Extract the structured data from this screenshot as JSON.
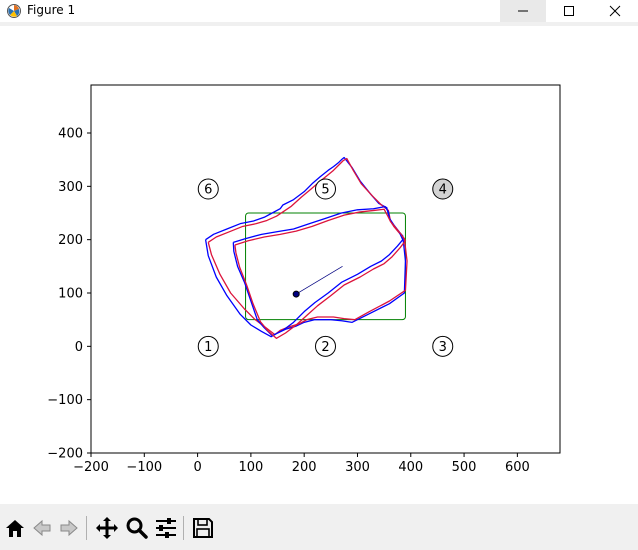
{
  "window": {
    "title": "Figure 1",
    "app_icon": "matplotlib-icon",
    "controls": [
      "minimize",
      "maximize",
      "close"
    ]
  },
  "toolbar": {
    "tools": [
      "home-icon",
      "back-arrow-icon",
      "forward-arrow-icon",
      "pan-icon",
      "zoom-icon",
      "configure-subplots-icon",
      "save-icon"
    ]
  },
  "chart_data": {
    "type": "line",
    "xlim": [
      -200,
      680
    ],
    "ylim": [
      -200,
      490
    ],
    "x_ticks": [
      -200,
      -100,
      0,
      100,
      200,
      300,
      400,
      500,
      600
    ],
    "y_ticks": [
      -200,
      -100,
      0,
      100,
      200,
      300,
      400
    ],
    "x_tick_labels": [
      "−200",
      "−100",
      "0",
      "100",
      "200",
      "300",
      "400",
      "500",
      "600"
    ],
    "y_tick_labels": [
      "−200",
      "−100",
      "0",
      "100",
      "200",
      "300",
      "400"
    ],
    "grid": false,
    "colors": {
      "blue": "#0000ff",
      "red": "#dc143c",
      "green": "#008000",
      "navy": "#000080",
      "marker_highlight": "#d3d3d3"
    },
    "markers": [
      {
        "label": "1",
        "x": 20,
        "y": 0,
        "highlighted": false
      },
      {
        "label": "2",
        "x": 240,
        "y": 0,
        "highlighted": false
      },
      {
        "label": "3",
        "x": 460,
        "y": 0,
        "highlighted": false
      },
      {
        "label": "4",
        "x": 460,
        "y": 295,
        "highlighted": true
      },
      {
        "label": "5",
        "x": 240,
        "y": 295,
        "highlighted": false
      },
      {
        "label": "6",
        "x": 20,
        "y": 295,
        "highlighted": false
      }
    ],
    "rectangle": {
      "x0": 90,
      "y0": 50,
      "x1": 390,
      "y1": 250
    },
    "center_point": {
      "x": 185,
      "y": 98
    },
    "direction_line": {
      "x0": 185,
      "y0": 98,
      "x1": 272,
      "y1": 150
    },
    "series": [
      {
        "color": "blue",
        "x": [
          15,
          30,
          55,
          80,
          105,
          125,
          140,
          155,
          160,
          180,
          200,
          215,
          230,
          245,
          255,
          265,
          270,
          275,
          290,
          305,
          325,
          340,
          355,
          360,
          365,
          375,
          385,
          390,
          388,
          360,
          320,
          290,
          270,
          250,
          220,
          200,
          185,
          165,
          150,
          138,
          120,
          100,
          80,
          55,
          35,
          20,
          15
        ],
        "y": [
          200,
          210,
          220,
          230,
          235,
          242,
          250,
          258,
          265,
          275,
          290,
          305,
          318,
          330,
          337,
          345,
          350,
          354,
          335,
          310,
          285,
          268,
          260,
          240,
          230,
          218,
          207,
          160,
          100,
          80,
          60,
          45,
          48,
          50,
          50,
          45,
          38,
          32,
          25,
          18,
          28,
          40,
          60,
          95,
          130,
          170,
          200
        ]
      },
      {
        "color": "red",
        "x": [
          20,
          35,
          60,
          85,
          110,
          130,
          148,
          160,
          175,
          195,
          213,
          228,
          243,
          255,
          265,
          273,
          280,
          292,
          307,
          328,
          345,
          358,
          362,
          368,
          378,
          388,
          393,
          390,
          360,
          322,
          295,
          275,
          255,
          225,
          205,
          190,
          170,
          155,
          145,
          128,
          108,
          88,
          62,
          42,
          26,
          20
        ],
        "y": [
          195,
          205,
          215,
          225,
          230,
          236,
          244,
          252,
          262,
          280,
          295,
          308,
          320,
          330,
          340,
          348,
          352,
          330,
          305,
          282,
          265,
          255,
          235,
          225,
          213,
          202,
          160,
          105,
          85,
          65,
          50,
          52,
          55,
          55,
          50,
          42,
          36,
          30,
          22,
          35,
          50,
          70,
          100,
          135,
          172,
          195
        ]
      },
      {
        "color": "blue",
        "x": [
          67,
          90,
          120,
          150,
          180,
          210,
          240,
          270,
          300,
          330,
          352,
          358,
          360,
          368,
          378,
          385,
          375,
          360,
          345,
          325,
          300,
          270,
          245,
          220,
          200,
          180,
          160,
          140,
          125,
          112,
          100,
          88,
          75,
          68,
          67
        ],
        "y": [
          195,
          202,
          210,
          215,
          220,
          230,
          240,
          250,
          256,
          258,
          262,
          252,
          240,
          228,
          215,
          200,
          188,
          172,
          160,
          150,
          135,
          120,
          100,
          82,
          65,
          45,
          30,
          20,
          35,
          50,
          85,
          120,
          150,
          178,
          195
        ]
      },
      {
        "color": "red",
        "x": [
          70,
          95,
          125,
          155,
          185,
          215,
          245,
          275,
          305,
          333,
          350,
          356,
          362,
          372,
          382,
          390,
          380,
          365,
          350,
          330,
          305,
          275,
          250,
          225,
          205,
          185,
          165,
          148,
          133,
          118,
          104,
          92,
          79,
          72,
          70
        ],
        "y": [
          190,
          198,
          205,
          210,
          216,
          225,
          236,
          246,
          252,
          255,
          257,
          246,
          234,
          222,
          210,
          198,
          185,
          168,
          155,
          145,
          130,
          115,
          95,
          76,
          58,
          40,
          25,
          15,
          28,
          46,
          80,
          115,
          148,
          175,
          190
        ]
      }
    ]
  }
}
